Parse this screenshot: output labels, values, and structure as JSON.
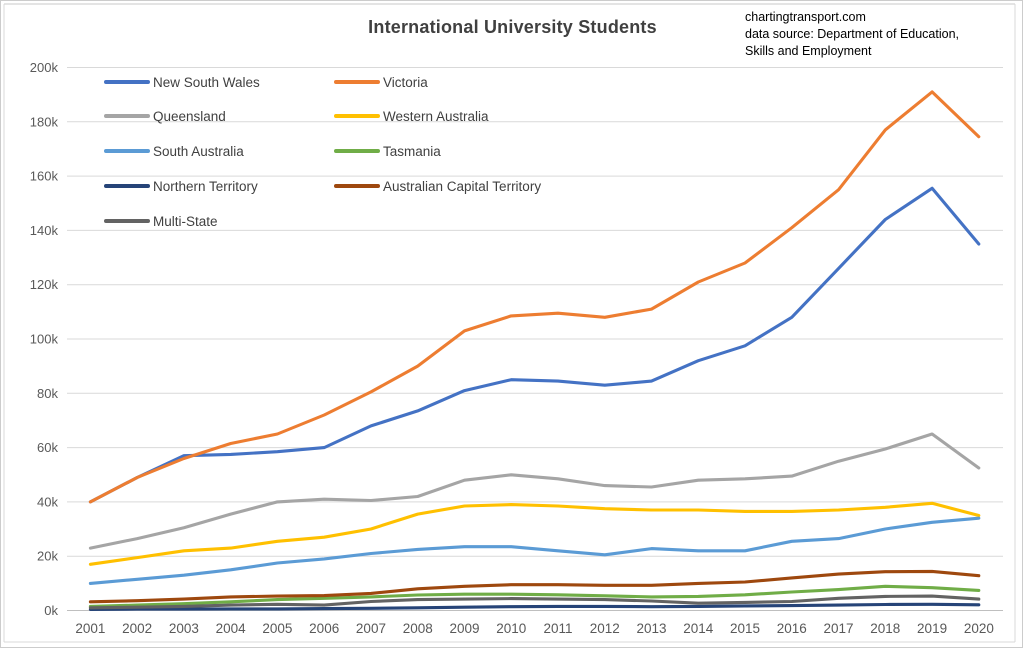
{
  "title": "International University Students",
  "annotation": {
    "line1": "chartingtransport.com",
    "line2": "data source: Department of Education,",
    "line3": "Skills and Employment"
  },
  "legend": [
    {
      "label": "New South Wales",
      "color": "#4472C4"
    },
    {
      "label": "Victoria",
      "color": "#ED7D31"
    },
    {
      "label": "Queensland",
      "color": "#A5A5A5"
    },
    {
      "label": "Western Australia",
      "color": "#FFC000"
    },
    {
      "label": "South Australia",
      "color": "#5B9BD5"
    },
    {
      "label": "Tasmania",
      "color": "#70AD47"
    },
    {
      "label": "Northern Territory",
      "color": "#264478"
    },
    {
      "label": "Australian Capital Territory",
      "color": "#9E480E"
    },
    {
      "label": "Multi-State",
      "color": "#636363"
    }
  ],
  "chart_data": {
    "type": "line",
    "title": "International University Students",
    "units": "students (values stored in thousands)",
    "x": [
      2001,
      2002,
      2003,
      2004,
      2005,
      2006,
      2007,
      2008,
      2009,
      2010,
      2011,
      2012,
      2013,
      2014,
      2015,
      2016,
      2017,
      2018,
      2019,
      2020
    ],
    "series": [
      {
        "name": "New South Wales",
        "color": "#4472C4",
        "values": [
          40,
          49,
          57,
          57.5,
          58.5,
          60,
          68,
          73.5,
          81,
          85,
          84.5,
          83,
          84.5,
          92,
          97.5,
          108,
          126,
          144,
          155.5,
          135
        ]
      },
      {
        "name": "Victoria",
        "color": "#ED7D31",
        "values": [
          40,
          49,
          56,
          61.5,
          65,
          72,
          80.5,
          90,
          103,
          108.5,
          109.5,
          108,
          111,
          121,
          128,
          141,
          155,
          177,
          191,
          174.5
        ]
      },
      {
        "name": "Queensland",
        "color": "#A5A5A5",
        "values": [
          23,
          26.5,
          30.5,
          35.5,
          40,
          41,
          40.5,
          42,
          48,
          50,
          48.5,
          46,
          45.5,
          48,
          48.5,
          49.5,
          55,
          59.5,
          65,
          52.5
        ]
      },
      {
        "name": "Western Australia",
        "color": "#FFC000",
        "values": [
          17,
          19.5,
          22,
          23,
          25.5,
          27,
          30,
          35.5,
          38.5,
          39,
          38.5,
          37.5,
          37,
          37,
          36.5,
          36.5,
          37,
          38,
          39.5,
          35
        ]
      },
      {
        "name": "South Australia",
        "color": "#5B9BD5",
        "values": [
          10,
          11.5,
          13,
          15,
          17.5,
          19,
          21,
          22.5,
          23.5,
          23.5,
          22,
          20.5,
          22.8,
          22,
          22,
          25.5,
          26.5,
          30,
          32.5,
          34
        ]
      },
      {
        "name": "Tasmania",
        "color": "#70AD47",
        "values": [
          1.5,
          2,
          2.5,
          3.2,
          4,
          4.5,
          5,
          5.7,
          6,
          6,
          5.8,
          5.4,
          5,
          5.2,
          5.8,
          6.8,
          7.7,
          8.9,
          8.4,
          7.4
        ]
      },
      {
        "name": "Northern Territory",
        "color": "#264478",
        "values": [
          0.4,
          0.5,
          0.5,
          0.6,
          0.6,
          0.7,
          0.8,
          1,
          1.2,
          1.4,
          1.5,
          1.5,
          1.4,
          1.5,
          1.7,
          1.8,
          2,
          2.2,
          2.3,
          2.1
        ]
      },
      {
        "name": "Australian Capital Territory",
        "color": "#9E480E",
        "values": [
          3.2,
          3.6,
          4.2,
          5,
          5.3,
          5.5,
          6.3,
          8,
          8.9,
          9.5,
          9.5,
          9.3,
          9.3,
          10,
          10.5,
          12,
          13.4,
          14.3,
          14.4,
          12.8
        ]
      },
      {
        "name": "Multi-State",
        "color": "#636363",
        "values": [
          1,
          1.2,
          1.5,
          2,
          2.3,
          2,
          3.3,
          4,
          4.2,
          4.4,
          4.2,
          4,
          3.5,
          2.7,
          3,
          3.3,
          4.5,
          5.2,
          5.3,
          4.2
        ]
      }
    ],
    "ylim": [
      0,
      200
    ],
    "ytick_step": 20,
    "ytick_labels": [
      "0k",
      "20k",
      "40k",
      "60k",
      "80k",
      "100k",
      "120k",
      "140k",
      "160k",
      "180k",
      "200k"
    ],
    "xtick_labels": [
      "2001",
      "2002",
      "2003",
      "2004",
      "2005",
      "2006",
      "2007",
      "2008",
      "2009",
      "2010",
      "2011",
      "2012",
      "2013",
      "2014",
      "2015",
      "2016",
      "2017",
      "2018",
      "2019",
      "2020"
    ],
    "grid": "horizontal",
    "legend_position": "top-left inside plot, two columns"
  }
}
